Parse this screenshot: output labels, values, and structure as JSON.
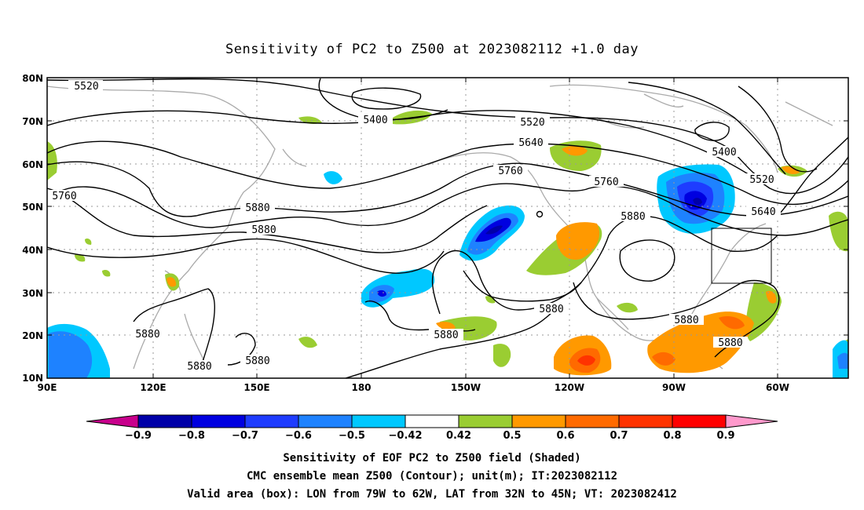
{
  "title": "Sensitivity of PC2 to Z500 at 2023082112 +1.0 day",
  "axes": {
    "lat_labels": [
      "80N",
      "70N",
      "60N",
      "50N",
      "40N",
      "30N",
      "20N",
      "10N"
    ],
    "lon_labels": [
      "90E",
      "120E",
      "150E",
      "180",
      "150W",
      "120W",
      "90W",
      "60W"
    ]
  },
  "contour_labels": [
    {
      "id": "c5520a",
      "text": "5520"
    },
    {
      "id": "c5400a",
      "text": "5400"
    },
    {
      "id": "c5520b",
      "text": "5520"
    },
    {
      "id": "c5640a",
      "text": "5640"
    },
    {
      "id": "c5400b",
      "text": "5400"
    },
    {
      "id": "c5520c",
      "text": "5520"
    },
    {
      "id": "c5760a",
      "text": "5760"
    },
    {
      "id": "c5760b",
      "text": "5760"
    },
    {
      "id": "c5760c",
      "text": "5760"
    },
    {
      "id": "c5640b",
      "text": "5640"
    },
    {
      "id": "c5880a",
      "text": "5880"
    },
    {
      "id": "c5880b",
      "text": "5880"
    },
    {
      "id": "c5880c",
      "text": "5880"
    },
    {
      "id": "c5880d",
      "text": "5880"
    },
    {
      "id": "c5880e",
      "text": "5880"
    },
    {
      "id": "c5880f",
      "text": "5880"
    },
    {
      "id": "c5880g",
      "text": "5880"
    },
    {
      "id": "c5880h",
      "text": "5880"
    },
    {
      "id": "c5880i",
      "text": "5880"
    }
  ],
  "colorbar": {
    "labels": [
      "−0.9",
      "−0.8",
      "−0.7",
      "−0.6",
      "−0.5",
      "−0.42",
      "0.42",
      "0.5",
      "0.6",
      "0.7",
      "0.8",
      "0.9"
    ],
    "colors": [
      "#c8008c",
      "#0000a8",
      "#0000e0",
      "#1e3cff",
      "#1e82ff",
      "#00c8ff",
      "#ffffff",
      "#9acd32",
      "#ff9900",
      "#ff6a00",
      "#ff3300",
      "#ff0000",
      "#ff99cc"
    ]
  },
  "captions": {
    "line1": "Sensitivity of EOF PC2 to Z500 field (Shaded)",
    "line2": "CMC ensemble mean Z500 (Contour); unit(m); IT:2023082112",
    "line3": "Valid area (box): LON from 79W to 62W, LAT from 32N to 45N; VT: 2023082412"
  }
}
